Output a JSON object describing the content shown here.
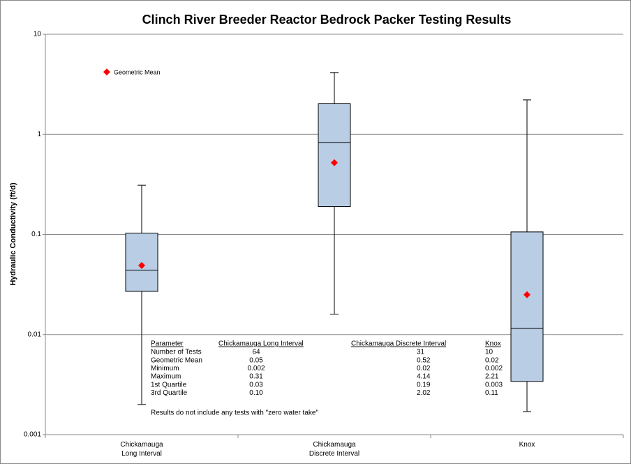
{
  "chart_data": {
    "type": "box",
    "title": "Clinch River Breeder Reactor Bedrock Packer Testing Results",
    "y_label": "Hydraulic Conductivity (ft/d)",
    "categories": [
      "Chickamauga\nLong Interval",
      "Chickamauga\nDiscrete Interval",
      "Knox"
    ],
    "boxes": [
      {
        "min": 0.002,
        "q1": 0.027,
        "median": 0.044,
        "q3": 0.103,
        "max": 0.31,
        "mean": 0.049
      },
      {
        "min": 0.016,
        "q1": 0.19,
        "median": 0.83,
        "q3": 2.02,
        "max": 4.14,
        "mean": 0.52
      },
      {
        "min": 0.0017,
        "q1": 0.0034,
        "median": 0.0115,
        "q3": 0.106,
        "max": 2.21,
        "mean": 0.025
      }
    ],
    "box_color": "#b9cde5",
    "mean_name": "Geometric Mean",
    "mean_color": "#ff0000",
    "legend": "upper left",
    "log_y": true,
    "ylim": [
      0.001,
      10
    ],
    "yticks": [
      0.001,
      0.01,
      0.1,
      1,
      10
    ],
    "grid": true,
    "table": {
      "header": [
        "Parameter",
        "Chickamauga Long Interval",
        "Chickamauga Discrete Interval",
        "Knox"
      ],
      "rows": [
        [
          "Number of Tests",
          "64",
          "31",
          "10"
        ],
        [
          "Geometric Mean",
          "0.05",
          "0.52",
          "0.02"
        ],
        [
          "Minimum",
          "0.002",
          "0.02",
          "0.002"
        ],
        [
          "Maximum",
          "0.31",
          "4.14",
          "2.21"
        ],
        [
          "1st Quartile",
          "0.03",
          "0.19",
          "0.003"
        ],
        [
          "3rd Quartile",
          "0.10",
          "2.02",
          "0.11"
        ]
      ]
    },
    "note": "Results do not include any tests with \"zero water take\""
  }
}
